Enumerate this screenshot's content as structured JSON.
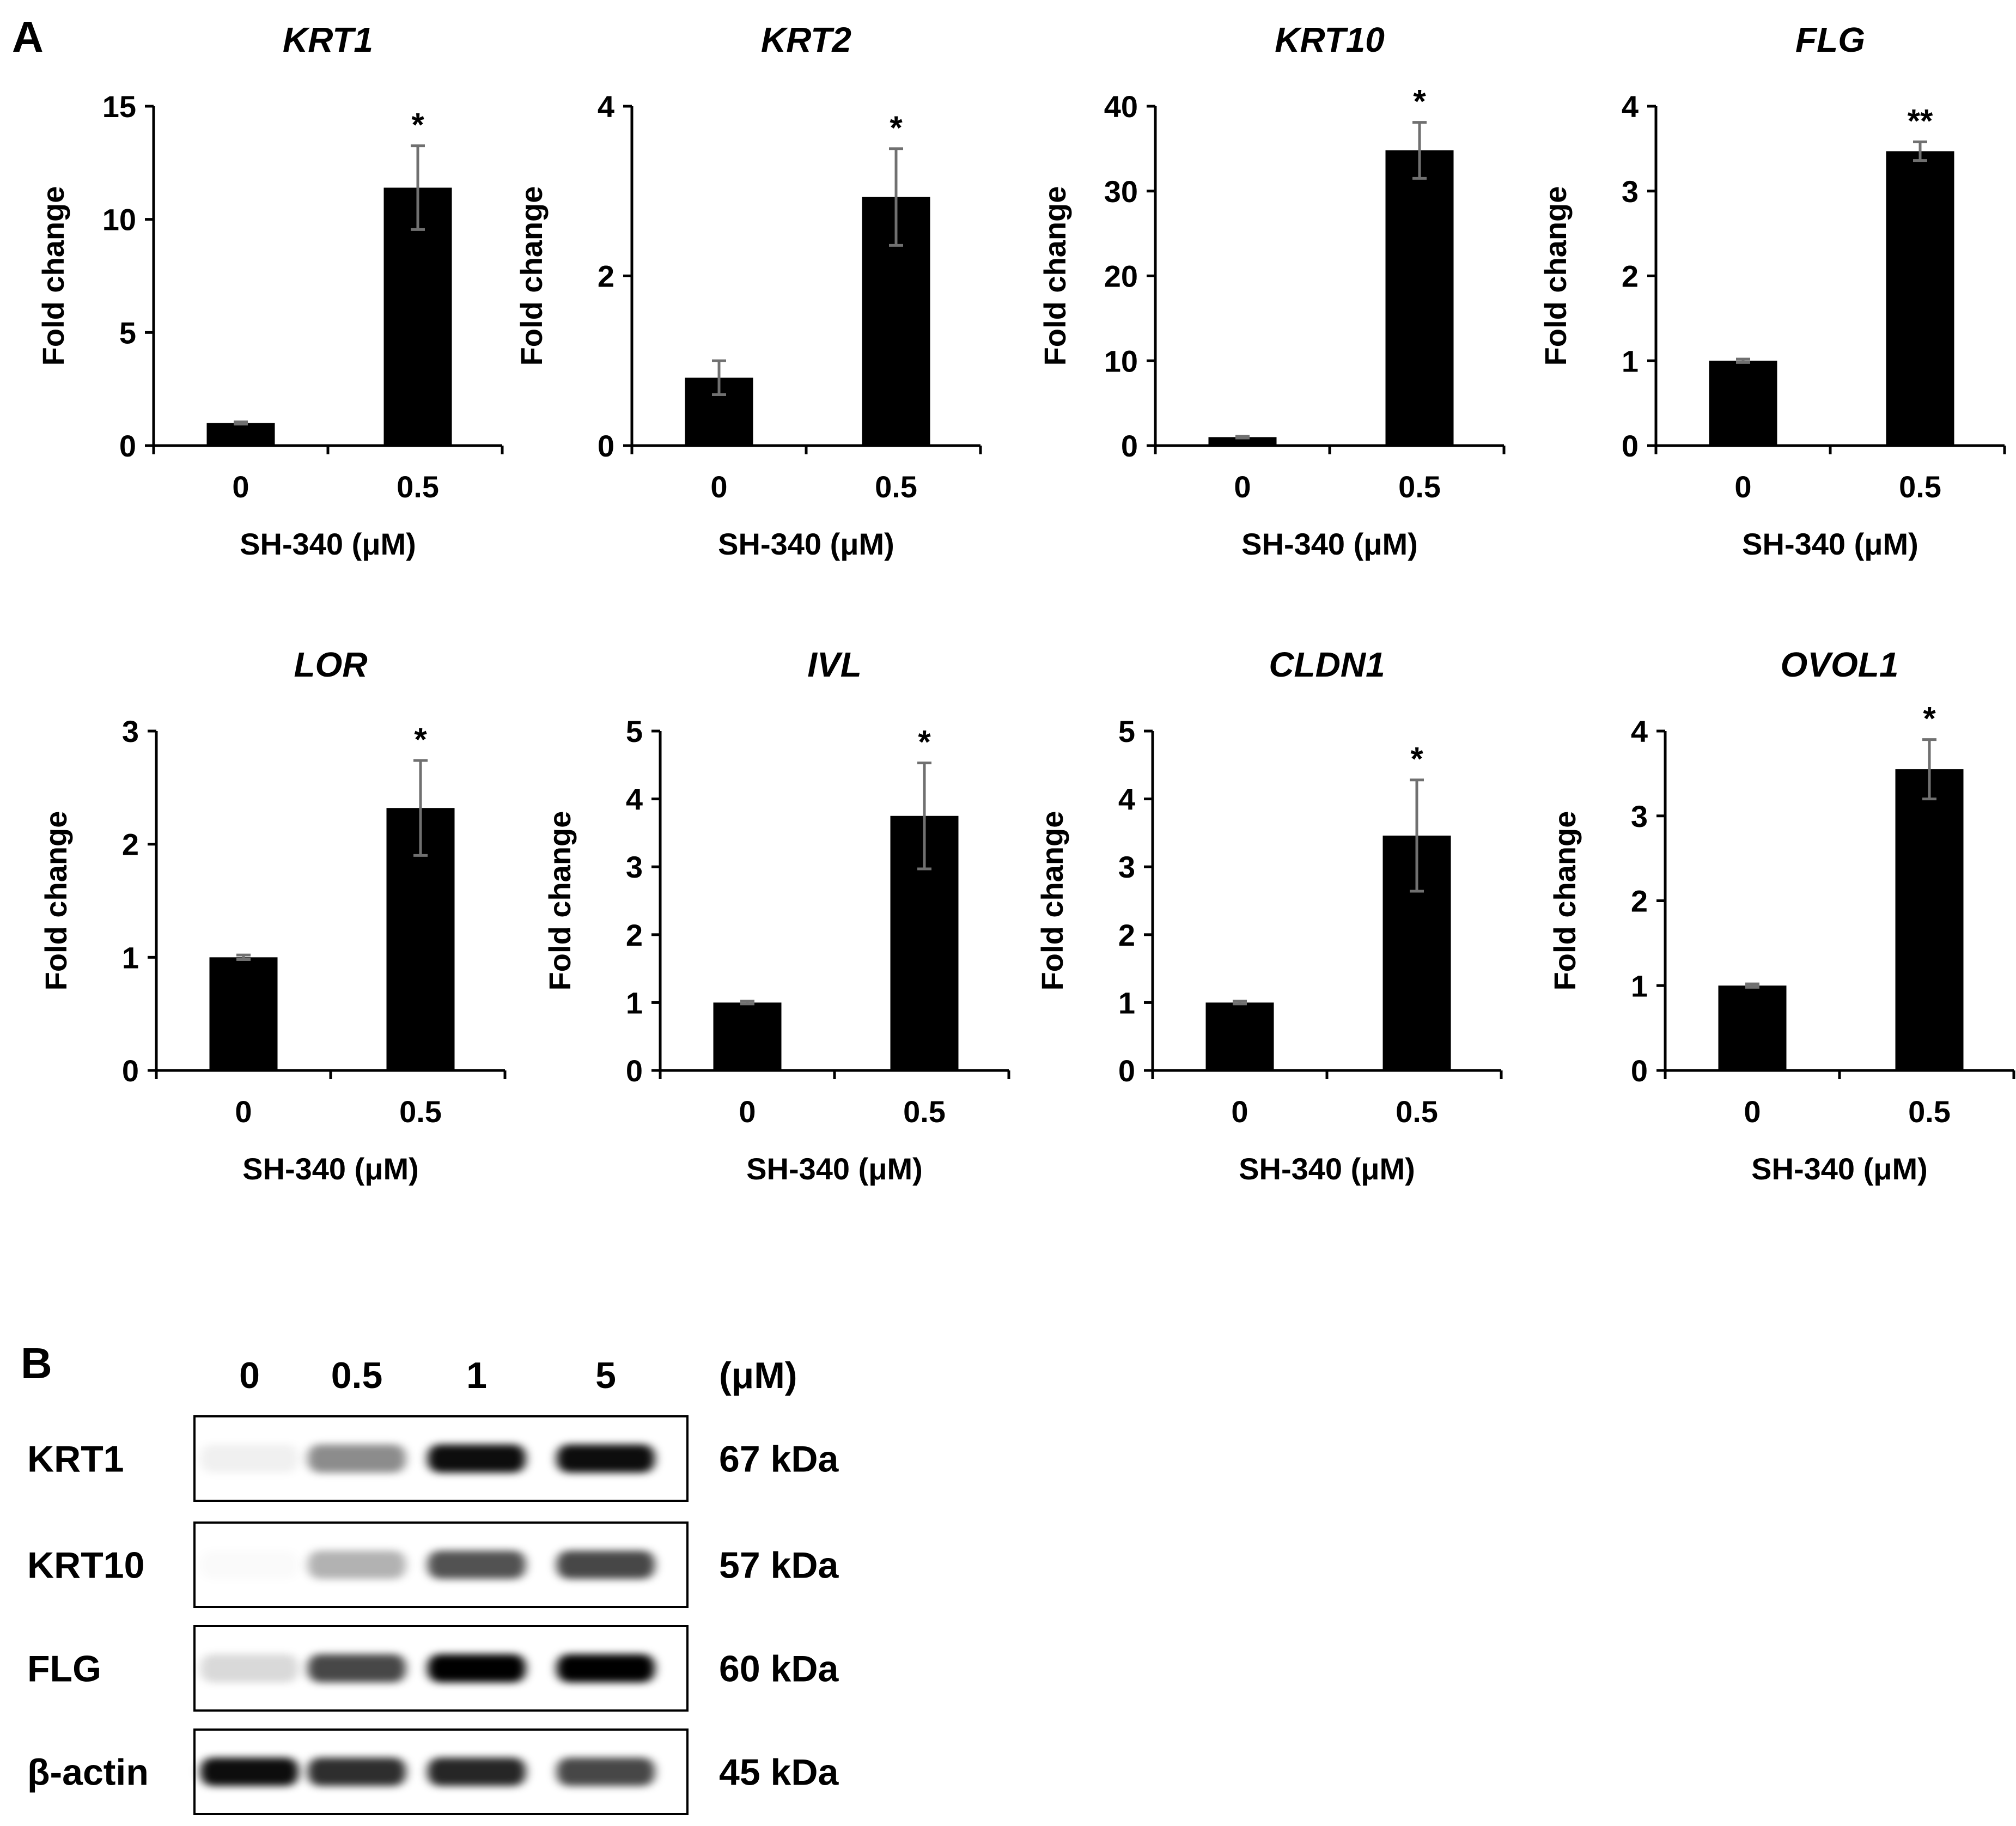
{
  "panel_a_label": "A",
  "panel_b_label": "B",
  "chart_data": [
    {
      "type": "bar",
      "gene": "KRT1",
      "categories": [
        "0",
        "0.5"
      ],
      "values": [
        1.0,
        11.4
      ],
      "errors": [
        0.05,
        1.85
      ],
      "yticks": [
        "0",
        "5",
        "10",
        "15"
      ],
      "ylim": [
        0,
        15
      ],
      "ylabel": "Fold change",
      "xlabel": "SH-340 (μM)",
      "significance": [
        "",
        "*"
      ]
    },
    {
      "type": "bar",
      "gene": "KRT2",
      "categories": [
        "0",
        "0.5"
      ],
      "values": [
        0.8,
        2.93
      ],
      "errors": [
        0.2,
        0.57
      ],
      "yticks": [
        "0",
        "2",
        "4"
      ],
      "ylim": [
        0,
        4
      ],
      "ylabel": "Fold change",
      "xlabel": "SH-340 (μM)",
      "significance": [
        "",
        "*"
      ]
    },
    {
      "type": "bar",
      "gene": "KRT10",
      "categories": [
        "0",
        "0.5"
      ],
      "values": [
        1.0,
        34.8
      ],
      "errors": [
        0.1,
        3.3
      ],
      "yticks": [
        "0",
        "10",
        "20",
        "30",
        "40"
      ],
      "ylim": [
        0,
        40
      ],
      "ylabel": "Fold change",
      "xlabel": "SH-340 (μM)",
      "significance": [
        "",
        "*"
      ]
    },
    {
      "type": "bar",
      "gene": "FLG",
      "categories": [
        "0",
        "0.5"
      ],
      "values": [
        1.0,
        3.47
      ],
      "errors": [
        0.02,
        0.11
      ],
      "yticks": [
        "0",
        "1",
        "2",
        "3",
        "4"
      ],
      "ylim": [
        0,
        4
      ],
      "ylabel": "Fold change",
      "xlabel": "SH-340 (μM)",
      "significance": [
        "",
        "**"
      ]
    },
    {
      "type": "bar",
      "gene": "LOR",
      "categories": [
        "0",
        "0.5"
      ],
      "values": [
        1.0,
        2.32
      ],
      "errors": [
        0.02,
        0.42
      ],
      "yticks": [
        "0",
        "1",
        "2",
        "3"
      ],
      "ylim": [
        0,
        3
      ],
      "ylabel": "Fold change",
      "xlabel": "SH-340 (μM)",
      "significance": [
        "",
        "*"
      ]
    },
    {
      "type": "bar",
      "gene": "IVL",
      "categories": [
        "0",
        "0.5"
      ],
      "values": [
        1.0,
        3.75
      ],
      "errors": [
        0.02,
        0.78
      ],
      "yticks": [
        "0",
        "1",
        "2",
        "3",
        "4",
        "5"
      ],
      "ylim": [
        0,
        5
      ],
      "ylabel": "Fold change",
      "xlabel": "SH-340 (μM)",
      "significance": [
        "",
        "*"
      ]
    },
    {
      "type": "bar",
      "gene": "CLDN1",
      "categories": [
        "0",
        "0.5"
      ],
      "values": [
        1.0,
        3.46
      ],
      "errors": [
        0.02,
        0.82
      ],
      "yticks": [
        "0",
        "1",
        "2",
        "3",
        "4",
        "5"
      ],
      "ylim": [
        0,
        5
      ],
      "ylabel": "Fold change",
      "xlabel": "SH-340 (μM)",
      "significance": [
        "",
        "*"
      ]
    },
    {
      "type": "bar",
      "gene": "OVOL1",
      "categories": [
        "0",
        "0.5"
      ],
      "values": [
        1.0,
        3.55
      ],
      "errors": [
        0.02,
        0.35
      ],
      "yticks": [
        "0",
        "1",
        "2",
        "3",
        "4"
      ],
      "ylim": [
        0,
        4
      ],
      "ylabel": "Fold change",
      "xlabel": "SH-340 (μM)",
      "significance": [
        "",
        "*"
      ]
    }
  ],
  "western_blot": {
    "concentrations": [
      "0",
      "0.5",
      "1",
      "5"
    ],
    "unit": "(μM)",
    "rows": [
      {
        "protein": "KRT1",
        "size": "67 kDa",
        "intensities": [
          0.06,
          0.45,
          0.95,
          0.95
        ]
      },
      {
        "protein": "KRT10",
        "size": "57 kDa",
        "intensities": [
          0.02,
          0.3,
          0.68,
          0.72
        ]
      },
      {
        "protein": "FLG",
        "size": "60 kDa",
        "intensities": [
          0.15,
          0.72,
          1.0,
          1.0
        ]
      },
      {
        "protein": "β-actin",
        "size": "45 kDa",
        "intensities": [
          0.95,
          0.82,
          0.85,
          0.72
        ]
      }
    ],
    "colors": {
      "band": "#000000",
      "background": "#ffffff",
      "error_bar": "#707070"
    }
  }
}
